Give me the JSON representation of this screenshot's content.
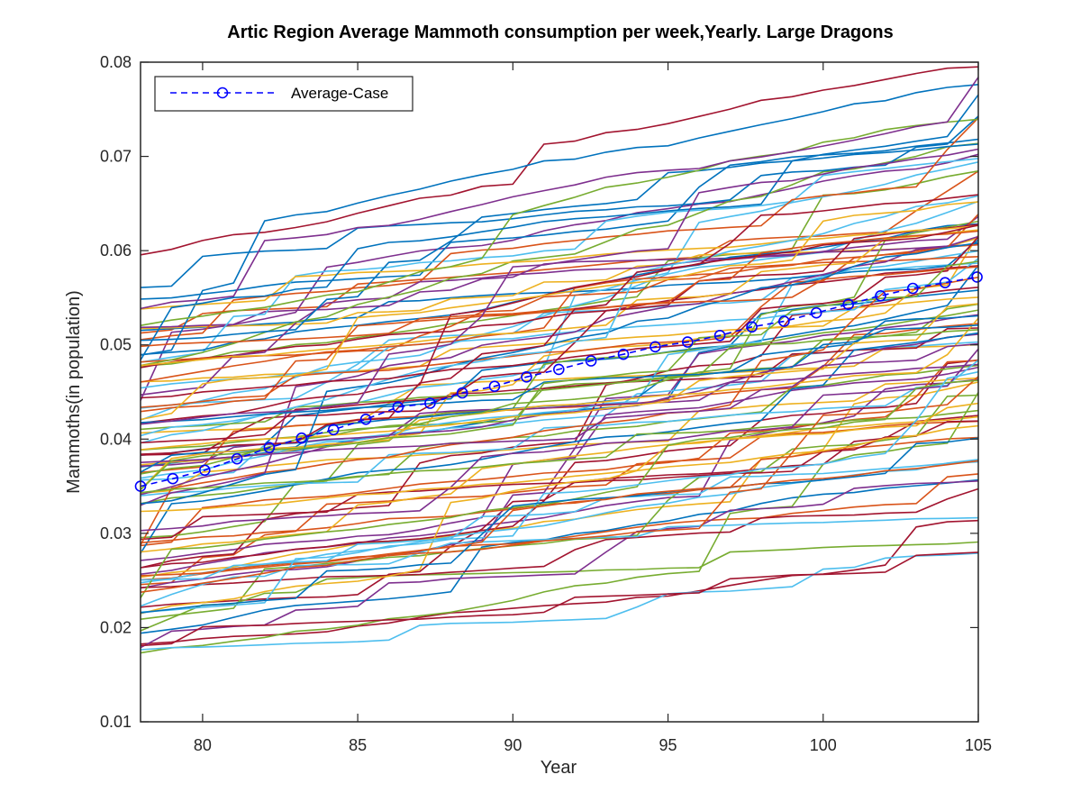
{
  "chart_data": {
    "type": "line",
    "title": "Artic Region Average Mammoth consumption per week,Yearly. Large Dragons",
    "xlabel": "Year",
    "ylabel": "Mammoths(in population)",
    "xlim": [
      78,
      105
    ],
    "ylim": [
      0.01,
      0.08
    ],
    "x_ticks": [
      80,
      85,
      90,
      95,
      100,
      105
    ],
    "y_ticks": [
      0.01,
      0.02,
      0.03,
      0.04,
      0.05,
      0.06,
      0.07,
      0.08
    ],
    "x_tick_labels": [
      "80",
      "85",
      "90",
      "95",
      "100",
      "105"
    ],
    "y_tick_labels": [
      "0.01",
      "0.02",
      "0.03",
      "0.04",
      "0.05",
      "0.06",
      "0.07",
      "0.08"
    ],
    "grid": false,
    "legend": {
      "position": "top-left",
      "entries": [
        "Average-Case"
      ]
    },
    "color_cycle": [
      "#0072BD",
      "#D95319",
      "#EDB120",
      "#7E2F8E",
      "#77AC30",
      "#4DBEEE",
      "#A2142F"
    ],
    "highlight_series": {
      "name": "Average-Case",
      "color": "#0000FF",
      "style": "dashed-circle-markers",
      "x": [
        78,
        79.04,
        80.07,
        81.11,
        82.15,
        83.19,
        84.22,
        85.26,
        86.3,
        87.33,
        88.37,
        89.41,
        90.44,
        91.48,
        92.52,
        93.56,
        94.59,
        95.63,
        96.67,
        97.7,
        98.74,
        99.78,
        100.81,
        101.85,
        102.89,
        103.93,
        104.96
      ],
      "y": [
        0.035,
        0.0358,
        0.0367,
        0.0379,
        0.0391,
        0.0401,
        0.041,
        0.0421,
        0.0434,
        0.0438,
        0.0449,
        0.0456,
        0.0466,
        0.0474,
        0.0483,
        0.049,
        0.0498,
        0.0503,
        0.051,
        0.0519,
        0.0525,
        0.0534,
        0.0543,
        0.0552,
        0.056,
        0.0566,
        0.0572
      ]
    },
    "background_series": {
      "count": 100,
      "years": [
        78,
        79,
        80,
        81,
        82,
        83,
        84,
        85,
        86,
        87,
        88,
        89,
        90,
        91,
        92,
        93,
        94,
        95,
        96,
        97,
        98,
        99,
        100,
        101,
        102,
        103,
        104,
        105
      ],
      "start_range": [
        0.017,
        0.06
      ],
      "end_range": [
        0.024,
        0.079
      ]
    }
  }
}
